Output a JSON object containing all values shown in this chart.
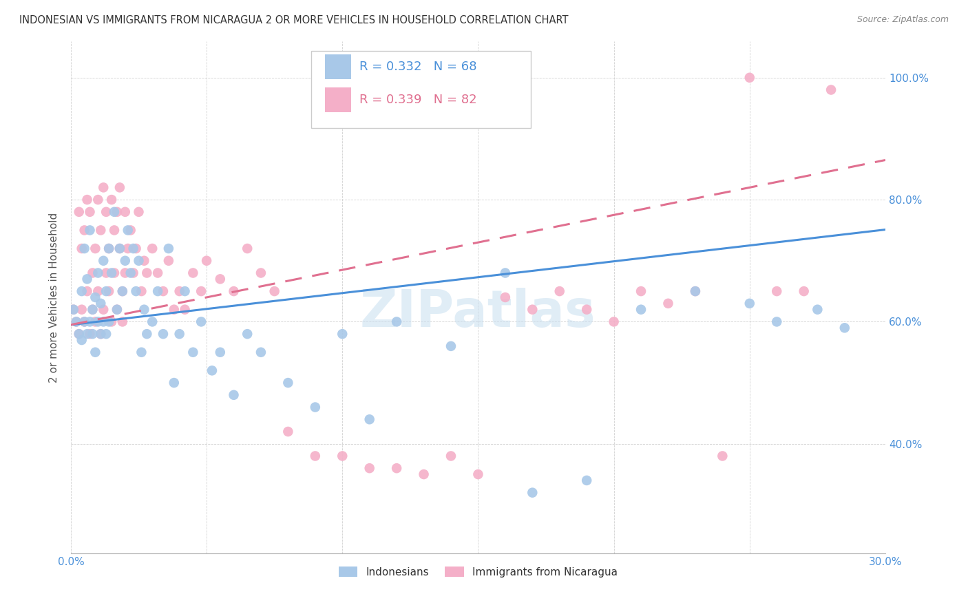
{
  "title": "INDONESIAN VS IMMIGRANTS FROM NICARAGUA 2 OR MORE VEHICLES IN HOUSEHOLD CORRELATION CHART",
  "source": "Source: ZipAtlas.com",
  "ylabel": "2 or more Vehicles in Household",
  "xmin": 0.0,
  "xmax": 0.3,
  "ymin": 0.22,
  "ymax": 1.06,
  "x_tick_positions": [
    0.0,
    0.05,
    0.1,
    0.15,
    0.2,
    0.25,
    0.3
  ],
  "x_tick_labels": [
    "0.0%",
    "",
    "",
    "",
    "",
    "",
    "30.0%"
  ],
  "y_tick_positions": [
    0.4,
    0.6,
    0.8,
    1.0
  ],
  "y_tick_labels": [
    "40.0%",
    "60.0%",
    "80.0%",
    "100.0%"
  ],
  "legend_label1": "Indonesians",
  "legend_label2": "Immigrants from Nicaragua",
  "legend_R1": "R = 0.332",
  "legend_N1": "N = 68",
  "legend_R2": "R = 0.339",
  "legend_N2": "N = 82",
  "color_blue": "#a8c8e8",
  "color_pink": "#f4afc8",
  "line_color_blue": "#4a90d9",
  "line_color_pink": "#e07090",
  "watermark": "ZIPatlas",
  "blue_intercept": 0.595,
  "blue_slope": 0.52,
  "pink_intercept": 0.595,
  "pink_slope": 0.9,
  "blue_x": [
    0.001,
    0.002,
    0.003,
    0.004,
    0.004,
    0.005,
    0.005,
    0.006,
    0.006,
    0.007,
    0.007,
    0.008,
    0.008,
    0.009,
    0.009,
    0.01,
    0.01,
    0.011,
    0.011,
    0.012,
    0.012,
    0.013,
    0.013,
    0.014,
    0.014,
    0.015,
    0.016,
    0.017,
    0.018,
    0.019,
    0.02,
    0.021,
    0.022,
    0.023,
    0.024,
    0.025,
    0.026,
    0.027,
    0.028,
    0.03,
    0.032,
    0.034,
    0.036,
    0.038,
    0.04,
    0.042,
    0.045,
    0.048,
    0.052,
    0.055,
    0.06,
    0.065,
    0.07,
    0.08,
    0.09,
    0.1,
    0.11,
    0.12,
    0.14,
    0.16,
    0.17,
    0.19,
    0.21,
    0.23,
    0.25,
    0.26,
    0.275,
    0.285
  ],
  "blue_y": [
    0.62,
    0.6,
    0.58,
    0.65,
    0.57,
    0.6,
    0.72,
    0.58,
    0.67,
    0.6,
    0.75,
    0.58,
    0.62,
    0.55,
    0.64,
    0.6,
    0.68,
    0.58,
    0.63,
    0.6,
    0.7,
    0.58,
    0.65,
    0.72,
    0.6,
    0.68,
    0.78,
    0.62,
    0.72,
    0.65,
    0.7,
    0.75,
    0.68,
    0.72,
    0.65,
    0.7,
    0.55,
    0.62,
    0.58,
    0.6,
    0.65,
    0.58,
    0.72,
    0.5,
    0.58,
    0.65,
    0.55,
    0.6,
    0.52,
    0.55,
    0.48,
    0.58,
    0.55,
    0.5,
    0.46,
    0.58,
    0.44,
    0.6,
    0.56,
    0.68,
    0.32,
    0.34,
    0.62,
    0.65,
    0.63,
    0.6,
    0.62,
    0.59
  ],
  "pink_x": [
    0.001,
    0.002,
    0.003,
    0.003,
    0.004,
    0.004,
    0.005,
    0.005,
    0.006,
    0.006,
    0.007,
    0.007,
    0.008,
    0.008,
    0.009,
    0.009,
    0.01,
    0.01,
    0.011,
    0.011,
    0.012,
    0.012,
    0.013,
    0.013,
    0.014,
    0.014,
    0.015,
    0.015,
    0.016,
    0.016,
    0.017,
    0.017,
    0.018,
    0.018,
    0.019,
    0.019,
    0.02,
    0.02,
    0.021,
    0.022,
    0.023,
    0.024,
    0.025,
    0.026,
    0.027,
    0.028,
    0.03,
    0.032,
    0.034,
    0.036,
    0.038,
    0.04,
    0.042,
    0.045,
    0.048,
    0.05,
    0.055,
    0.06,
    0.065,
    0.07,
    0.075,
    0.08,
    0.09,
    0.1,
    0.11,
    0.12,
    0.13,
    0.14,
    0.15,
    0.16,
    0.17,
    0.18,
    0.19,
    0.2,
    0.21,
    0.22,
    0.23,
    0.24,
    0.25,
    0.26,
    0.27,
    0.28
  ],
  "pink_y": [
    0.62,
    0.6,
    0.78,
    0.58,
    0.62,
    0.72,
    0.75,
    0.6,
    0.65,
    0.8,
    0.58,
    0.78,
    0.62,
    0.68,
    0.72,
    0.6,
    0.65,
    0.8,
    0.75,
    0.58,
    0.62,
    0.82,
    0.68,
    0.78,
    0.72,
    0.65,
    0.8,
    0.6,
    0.75,
    0.68,
    0.78,
    0.62,
    0.72,
    0.82,
    0.65,
    0.6,
    0.78,
    0.68,
    0.72,
    0.75,
    0.68,
    0.72,
    0.78,
    0.65,
    0.7,
    0.68,
    0.72,
    0.68,
    0.65,
    0.7,
    0.62,
    0.65,
    0.62,
    0.68,
    0.65,
    0.7,
    0.67,
    0.65,
    0.72,
    0.68,
    0.65,
    0.42,
    0.38,
    0.38,
    0.36,
    0.36,
    0.35,
    0.38,
    0.35,
    0.64,
    0.62,
    0.65,
    0.62,
    0.6,
    0.65,
    0.63,
    0.65,
    0.38,
    1.0,
    0.65,
    0.65,
    0.98
  ]
}
